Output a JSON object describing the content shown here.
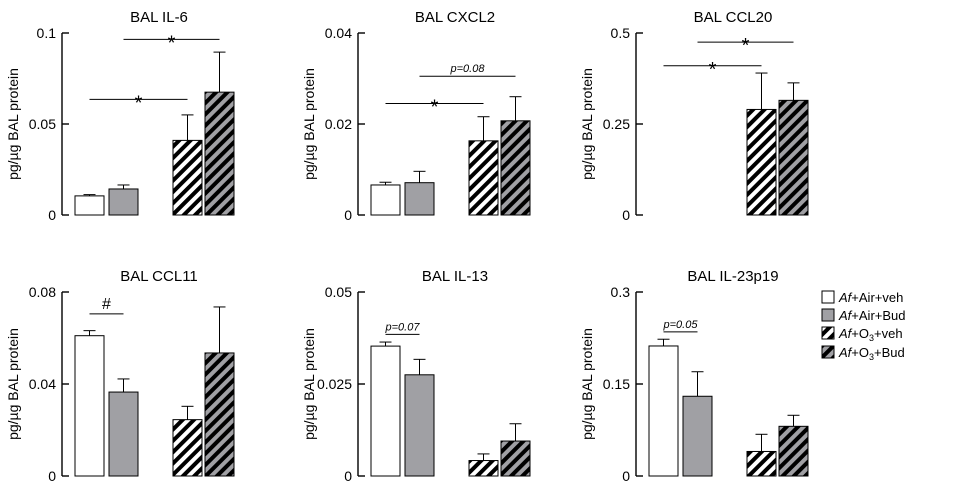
{
  "legend": {
    "entries": [
      {
        "key": "air_veh",
        "prefix": "Af",
        "text": "+Air+veh",
        "sub": "",
        "after": ""
      },
      {
        "key": "air_bud",
        "prefix": "Af",
        "text": "+Air+Bud",
        "sub": "",
        "after": ""
      },
      {
        "key": "o3_veh",
        "prefix": "Af",
        "text": "+O",
        "sub": "3",
        "after": "+veh"
      },
      {
        "key": "o3_bud",
        "prefix": "Af",
        "text": "+O",
        "sub": "3",
        "after": "+Bud"
      }
    ]
  },
  "colors": {
    "white": "#ffffff",
    "gray": "#a0a0a4",
    "black": "#000000"
  },
  "chart_data": [
    {
      "type": "bar",
      "title": "BAL IL-6",
      "ylabel": "pg/µg BAL protein",
      "ylim": [
        0,
        0.1
      ],
      "yticks": [
        0,
        0.05,
        0.1
      ],
      "ytick_labels": [
        "0",
        "0.05",
        "0.1"
      ],
      "categories": [
        "Af+Air+veh",
        "Af+Air+Bud",
        "Af+O3+veh",
        "Af+O3+Bud"
      ],
      "values": [
        0.0105,
        0.0143,
        0.041,
        0.0675
      ],
      "errors": [
        0.0007,
        0.0022,
        0.014,
        0.022
      ],
      "annotations": [
        {
          "label": "*",
          "from": 0,
          "to": 2,
          "y": 0.0635,
          "kind": "star"
        },
        {
          "label": "*",
          "from": 1,
          "to": 3,
          "y": 0.0965,
          "kind": "star"
        }
      ]
    },
    {
      "type": "bar",
      "title": "BAL CXCL2",
      "ylabel": "pg/µg BAL protein",
      "ylim": [
        0,
        0.04
      ],
      "yticks": [
        0,
        0.02,
        0.04
      ],
      "ytick_labels": [
        "0",
        "0.02",
        "0.04"
      ],
      "categories": [
        "Af+Air+veh",
        "Af+Air+Bud",
        "Af+O3+veh",
        "Af+O3+Bud"
      ],
      "values": [
        0.0066,
        0.0071,
        0.0163,
        0.0207
      ],
      "errors": [
        0.0006,
        0.0025,
        0.0053,
        0.0053
      ],
      "annotations": [
        {
          "label": "*",
          "from": 0,
          "to": 2,
          "y": 0.0245,
          "kind": "star"
        },
        {
          "label": "p=0.08",
          "from": 1,
          "to": 3,
          "y": 0.0305,
          "kind": "p"
        }
      ]
    },
    {
      "type": "bar",
      "title": "BAL CCL20",
      "ylabel": "pg/µg BAL protein",
      "ylim": [
        0,
        0.5
      ],
      "yticks": [
        0,
        0.25,
        0.5
      ],
      "ytick_labels": [
        "0",
        "0.25",
        "0.5"
      ],
      "categories": [
        "Af+Air+veh",
        "Af+Air+Bud",
        "Af+O3+veh",
        "Af+O3+Bud"
      ],
      "values": [
        0,
        0,
        0.29,
        0.315
      ],
      "errors": [
        0,
        0,
        0.1,
        0.048
      ],
      "annotations": [
        {
          "label": "*",
          "from": 0,
          "to": 2,
          "y": 0.41,
          "kind": "star"
        },
        {
          "label": "*",
          "from": 1,
          "to": 3,
          "y": 0.475,
          "kind": "star"
        }
      ]
    },
    {
      "type": "bar",
      "title": "BAL CCL11",
      "ylabel": "pg/µg BAL protein",
      "ylim": [
        0,
        0.08
      ],
      "yticks": [
        0,
        0.04,
        0.08
      ],
      "ytick_labels": [
        "0",
        "0.04",
        "0.08"
      ],
      "categories": [
        "Af+Air+veh",
        "Af+Air+Bud",
        "Af+O3+veh",
        "Af+O3+Bud"
      ],
      "values": [
        0.061,
        0.0365,
        0.0245,
        0.0535
      ],
      "errors": [
        0.0022,
        0.0057,
        0.0058,
        0.02
      ],
      "annotations": [
        {
          "label": "#",
          "from": 0,
          "to": 1,
          "y": 0.0705,
          "kind": "hash"
        }
      ]
    },
    {
      "type": "bar",
      "title": "BAL IL-13",
      "ylabel": "pg/µg BAL protein",
      "ylim": [
        0,
        0.05
      ],
      "yticks": [
        0,
        0.025,
        0.05
      ],
      "ytick_labels": [
        "0",
        "0.025",
        "0.05"
      ],
      "categories": [
        "Af+Air+veh",
        "Af+Air+Bud",
        "Af+O3+veh",
        "Af+O3+Bud"
      ],
      "values": [
        0.0353,
        0.0275,
        0.0042,
        0.0095
      ],
      "errors": [
        0.0011,
        0.0042,
        0.0018,
        0.0047
      ],
      "annotations": [
        {
          "label": "p=0.07",
          "from": 0,
          "to": 1,
          "y": 0.0385,
          "kind": "p"
        }
      ]
    },
    {
      "type": "bar",
      "title": "BAL IL-23p19",
      "ylabel": "pg/µg BAL protein",
      "ylim": [
        0,
        0.3
      ],
      "yticks": [
        0,
        0.15,
        0.3
      ],
      "ytick_labels": [
        "0",
        "0.15",
        "0.3"
      ],
      "categories": [
        "Af+Air+veh",
        "Af+Air+Bud",
        "Af+O3+veh",
        "Af+O3+Bud"
      ],
      "values": [
        0.212,
        0.13,
        0.04,
        0.081
      ],
      "errors": [
        0.011,
        0.04,
        0.028,
        0.018
      ],
      "annotations": [
        {
          "label": "p=0.05",
          "from": 0,
          "to": 1,
          "y": 0.235,
          "kind": "p"
        }
      ]
    }
  ]
}
